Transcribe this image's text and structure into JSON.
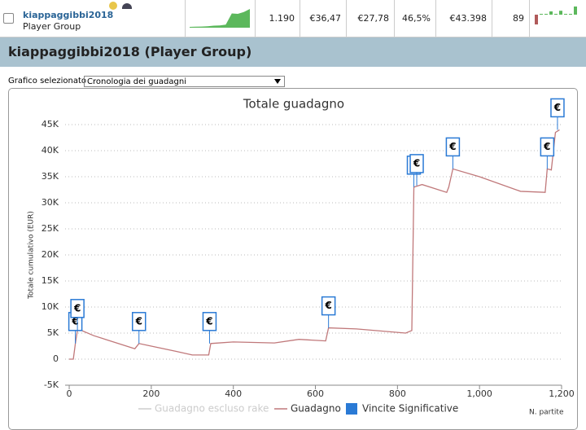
{
  "player_row": {
    "name": "kiappaggibbi2018",
    "group": "Player Group",
    "sparkline": [
      0,
      500,
      800,
      1500,
      3000,
      3500,
      5500,
      33000,
      32000,
      36500,
      44000
    ],
    "games": "1.190",
    "cell_2": "€36,47",
    "cell_3": "€27,78",
    "cell_4": "46,5%",
    "cell_5": "€43.398",
    "cell_6": "89",
    "mini_bars": [
      -3,
      0,
      0,
      1,
      0,
      1.2,
      0,
      0,
      2.5
    ]
  },
  "header": {
    "title": "kiappaggibbi2018 (Player Group)"
  },
  "selector": {
    "label": "Grafico selezionato",
    "value": "Cronologia dei guadagni"
  },
  "chart_data": {
    "type": "line",
    "title": "Totale guadagno",
    "y_label": "Totale cumulativo (EUR)",
    "x_label": "N. partite",
    "xlim": [
      -10,
      1200
    ],
    "ylim": [
      -5000,
      46000
    ],
    "xticks": [
      0,
      200,
      400,
      600,
      800,
      {
        "value": 1000,
        "label": "1,000"
      },
      {
        "value": 1200,
        "label": "1,200"
      }
    ],
    "yticks": [
      {
        "value": -5000,
        "label": "-5K"
      },
      0,
      {
        "value": 5000,
        "label": "5K"
      },
      {
        "value": 10000,
        "label": "10K"
      },
      {
        "value": 15000,
        "label": "15K"
      },
      {
        "value": 20000,
        "label": "20K"
      },
      {
        "value": 25000,
        "label": "25K"
      },
      {
        "value": 30000,
        "label": "30K"
      },
      {
        "value": 35000,
        "label": "35K"
      },
      {
        "value": 40000,
        "label": "40K"
      },
      {
        "value": 45000,
        "label": "45K"
      }
    ],
    "grid": true,
    "series": [
      {
        "name": "Guadagno escluso rake",
        "color": "#cccccc",
        "visible": false
      },
      {
        "name": "Guadagno",
        "color": "#c0787a",
        "x": [
          0,
          10,
          15,
          20,
          30,
          60,
          100,
          160,
          170,
          200,
          260,
          300,
          340,
          345,
          400,
          500,
          560,
          625,
          632,
          700,
          820,
          835,
          840,
          860,
          920,
          925,
          935,
          1000,
          1100,
          1160,
          1165,
          1175,
          1185,
          1195
        ],
        "values": [
          0,
          0,
          3000,
          5500,
          5500,
          4500,
          3500,
          2000,
          3000,
          2500,
          1500,
          800,
          800,
          3000,
          3300,
          3100,
          3800,
          3500,
          6000,
          5800,
          5000,
          5500,
          33000,
          33500,
          32000,
          33000,
          36500,
          35000,
          32200,
          32000,
          36500,
          36300,
          43500,
          44000
        ]
      },
      {
        "name": "Vincite Significative",
        "color": "#2a7ad5",
        "marker_label": "€",
        "x": [
          15,
          20,
          170,
          342,
          632,
          840,
          847,
          935,
          1165,
          1190
        ],
        "values": [
          3000,
          5500,
          3000,
          3000,
          6000,
          33000,
          33300,
          36500,
          36500,
          44000
        ]
      }
    ]
  }
}
